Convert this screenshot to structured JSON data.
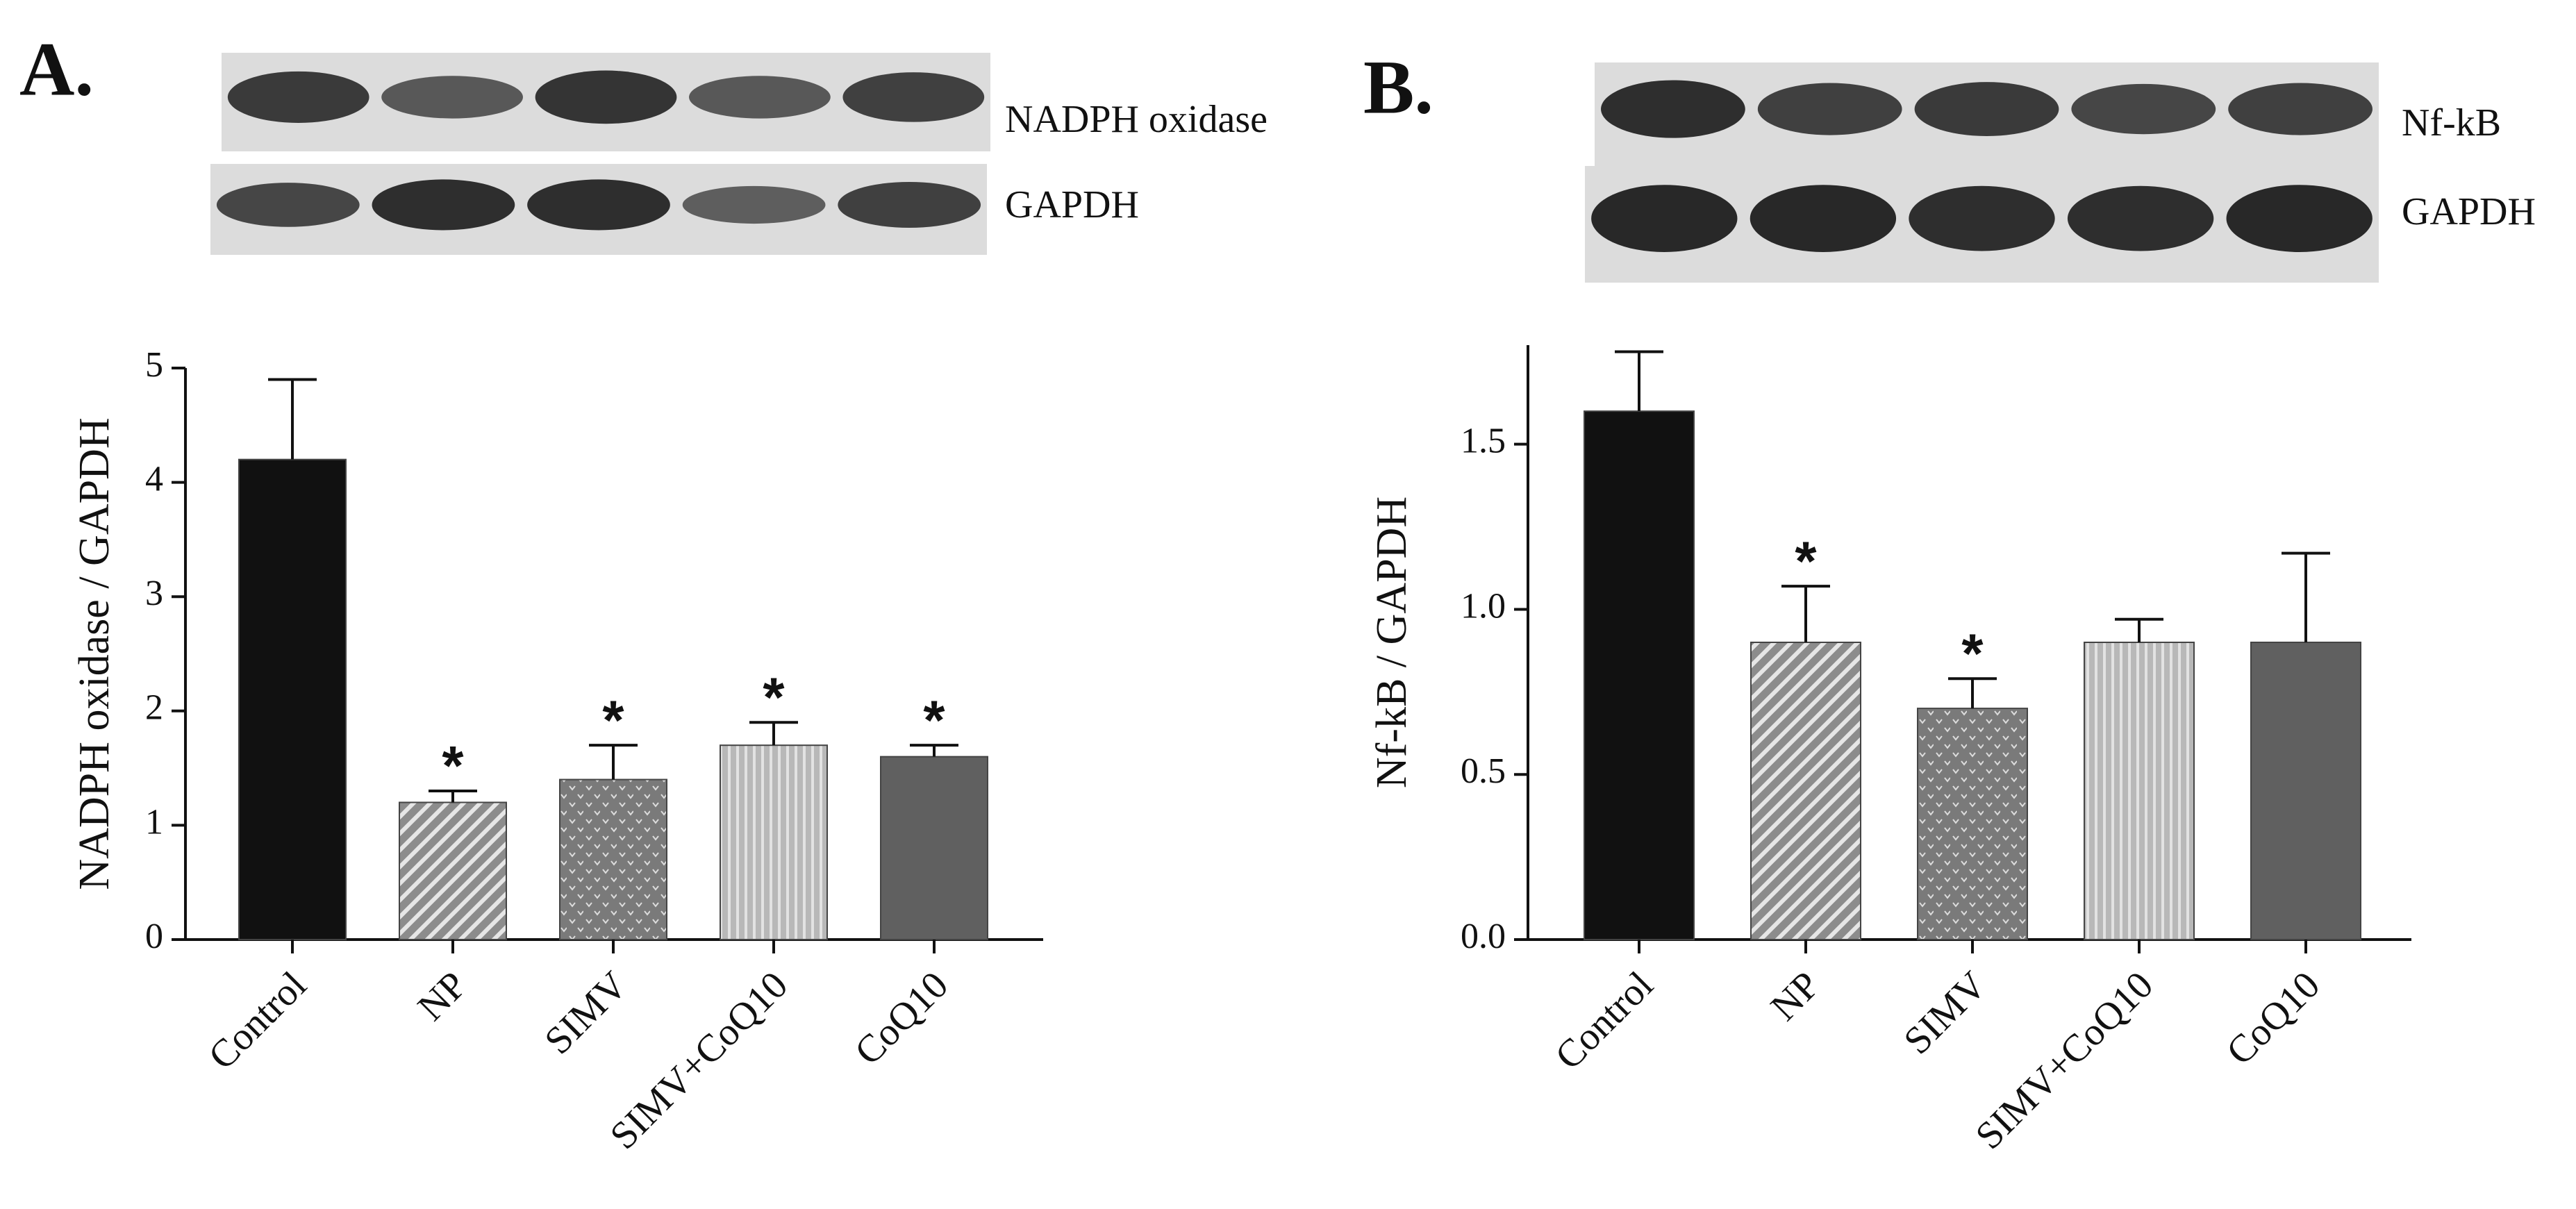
{
  "chart_data": [
    {
      "type": "bar",
      "panel_label": "A.",
      "blot_labels": [
        "NADPH oxidase",
        "GAPDH"
      ],
      "y_label": "NADPH oxidase / GAPDH",
      "categories": [
        "Control",
        "NP",
        "SIMV",
        "SIMV+CoQ10",
        "CoQ10"
      ],
      "values": [
        4.2,
        1.2,
        1.4,
        1.7,
        1.6
      ],
      "errors": [
        0.7,
        0.1,
        0.3,
        0.2,
        0.1
      ],
      "markers": [
        null,
        "*",
        "*",
        "*",
        "*"
      ],
      "colors": [
        "#111111",
        "#8c8c8c",
        "#7a7a7a",
        "#b8b8b8",
        "#606060"
      ],
      "patterns": [
        "solid",
        "diagonal",
        "dots",
        "vertical",
        "solid"
      ],
      "ylim": [
        0,
        5
      ],
      "yticks": [
        0,
        1,
        2,
        3,
        4,
        5
      ]
    },
    {
      "type": "bar",
      "panel_label": "B.",
      "blot_labels": [
        "Nf-kB",
        "GAPDH"
      ],
      "y_label": "Nf-kB / GAPDH",
      "categories": [
        "Control",
        "NP",
        "SIMV",
        "SIMV+CoQ10",
        "CoQ10"
      ],
      "values": [
        1.6,
        0.9,
        0.7,
        0.9,
        0.9
      ],
      "errors": [
        0.18,
        0.17,
        0.09,
        0.07,
        0.27
      ],
      "markers": [
        null,
        "*",
        "*",
        null,
        null
      ],
      "colors": [
        "#111111",
        "#8c8c8c",
        "#7a7a7a",
        "#b8b8b8",
        "#606060"
      ],
      "patterns": [
        "solid",
        "diagonal",
        "dots",
        "vertical",
        "solid"
      ],
      "ylim": [
        0,
        1.8
      ],
      "yticks": [
        {
          "value": 0,
          "label": "0.0"
        },
        0.5,
        {
          "value": 1,
          "label": "1.0"
        },
        1.5
      ]
    }
  ]
}
